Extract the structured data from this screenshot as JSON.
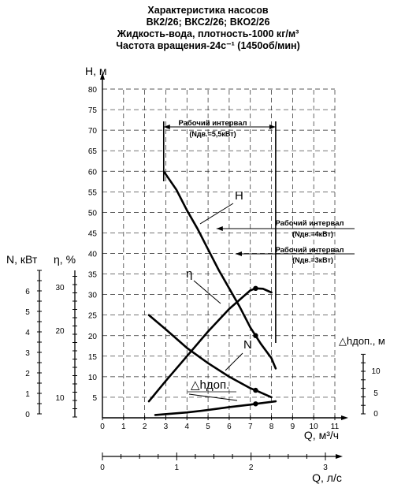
{
  "header": {
    "line1": "Характеристика насосов",
    "line2": "ВК2/26; ВКС2/26; ВКО2/26",
    "line3": "Жидкость-вода, плотность-1000 кг/м³",
    "line4": "Частота вращения-24с⁻¹ (1450об/мин)"
  },
  "chart_data": {
    "type": "line",
    "title": "Характеристика насосов ВК2/26; ВКС2/26; ВКО2/26",
    "x": {
      "label": "Q, м³/ч",
      "range": [
        0,
        11
      ],
      "ticks": [
        "0",
        "1",
        "2",
        "3",
        "4",
        "5",
        "6",
        "7",
        "8",
        "9",
        "10",
        "11"
      ]
    },
    "x2": {
      "label": "Q, л/с",
      "range": [
        0,
        3
      ],
      "ticks": [
        "0",
        "1",
        "2",
        "3"
      ]
    },
    "y_head": {
      "label": "H, м",
      "range": [
        0,
        80
      ],
      "ticks": [
        "0",
        "5",
        "10",
        "15",
        "20",
        "25",
        "30",
        "35",
        "40",
        "45",
        "50",
        "55",
        "60",
        "65",
        "70",
        "75",
        "80"
      ]
    },
    "y_power": {
      "label": "N, кВт",
      "ticks": [
        "0",
        "1",
        "2",
        "3",
        "4",
        "5",
        "6"
      ]
    },
    "y_eff": {
      "label": "η, %",
      "ticks": [
        "10",
        "20",
        "30"
      ]
    },
    "y_npsh": {
      "label": "△hдоп., м",
      "ticks": [
        "0",
        "5",
        "10"
      ]
    },
    "series": [
      {
        "name": "H",
        "x": [
          2.9,
          3.5,
          4.0,
          4.5,
          5.0,
          5.5,
          6.0,
          6.5,
          7.0,
          7.25,
          7.5,
          8.0,
          8.2
        ],
        "y": [
          60,
          55.5,
          50.5,
          46,
          41,
          36,
          31.5,
          27,
          22,
          20,
          18,
          14.5,
          12
        ],
        "markers_at": [
          7.25
        ]
      },
      {
        "name": "N",
        "x": [
          2.2,
          3.0,
          4.0,
          5.0,
          6.0,
          7.0,
          7.25,
          8.0
        ],
        "y": [
          25,
          21.5,
          17,
          13.3,
          10,
          7.2,
          6.7,
          5.0
        ],
        "markers_at": [
          7.25
        ]
      },
      {
        "name": "η",
        "x": [
          2.2,
          3.0,
          4.0,
          5.0,
          6.0,
          7.0,
          7.25,
          7.6,
          8.0
        ],
        "y": [
          4,
          9,
          15,
          21,
          26.5,
          31,
          31.5,
          31.4,
          30.5
        ],
        "markers_at": [
          7.25
        ]
      },
      {
        "name": "△hдоп.",
        "x": [
          2.5,
          4.0,
          5.0,
          6.0,
          7.0,
          7.25,
          8.2
        ],
        "y": [
          0.7,
          1.3,
          1.9,
          2.6,
          3.2,
          3.4,
          4.0
        ],
        "markers_at": [
          7.25
        ]
      }
    ],
    "annotations": {
      "work_interval_main": {
        "text": "Рабочий интервал",
        "sub": "(Nдв.=5,5кВт)",
        "x_range": [
          2.9,
          8.2
        ],
        "y": 70
      },
      "work_interval_4kw": {
        "text": "Рабочий интервал",
        "sub": "(Nдв.=4кВт)",
        "x_start": 5.4,
        "y": 45
      },
      "work_interval_3kw": {
        "text": "Рабочий интервал",
        "sub": "(Nдв.=3кВт)",
        "x_start": 6.3,
        "y": 39
      }
    },
    "grid": true,
    "legend": "none"
  }
}
